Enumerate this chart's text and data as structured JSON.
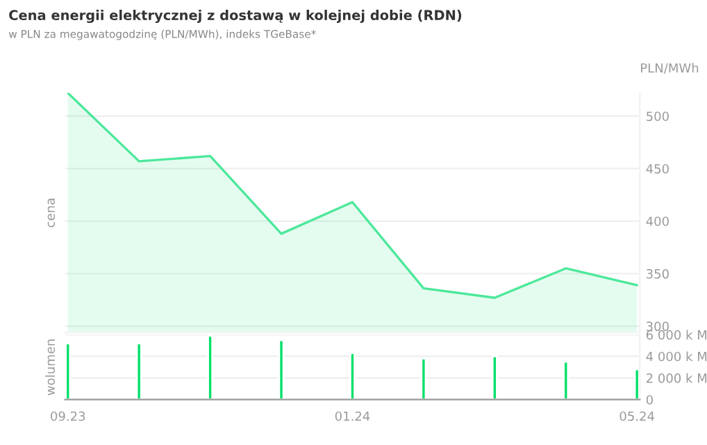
{
  "chart_data": [
    {
      "type": "area",
      "title": "Cena energii elektrycznej z dostawą w kolejnej dobie (RDN)",
      "subtitle": "w PLN za megawatogodzinę (PLN/MWh), indeks TGeBase*",
      "ylabel": "cena",
      "annotations": [
        "PLN/MWh"
      ],
      "categories": [
        "09.23",
        null,
        null,
        null,
        "01.24",
        null,
        null,
        null,
        "05.24"
      ],
      "series": [
        {
          "color": "#4de89a",
          "values": [
            522,
            457,
            462,
            388,
            418,
            336,
            327,
            355,
            339
          ]
        }
      ],
      "ylim": [
        294,
        522
      ],
      "yticks": [
        300,
        350,
        400,
        450,
        500
      ],
      "grid": "y",
      "tick_labels": "y"
    },
    {
      "type": "bar",
      "ylabel": "wolumen",
      "categories": [
        "09.23",
        null,
        null,
        null,
        "01.24",
        null,
        null,
        null,
        "05.24"
      ],
      "series": [
        {
          "color": "#00e06a",
          "values": [
            5200,
            5200,
            5900,
            5500,
            4300,
            3800,
            4000,
            3500,
            2800
          ]
        }
      ],
      "ylim": [
        0,
        6000
      ],
      "yticks": [
        0,
        {
          "value": 2000,
          "label": "2 000 k M"
        },
        {
          "value": 4000,
          "label": "4 000 k M"
        },
        {
          "value": 6000,
          "label": "6 000 k M"
        }
      ],
      "grid": "y"
    }
  ]
}
